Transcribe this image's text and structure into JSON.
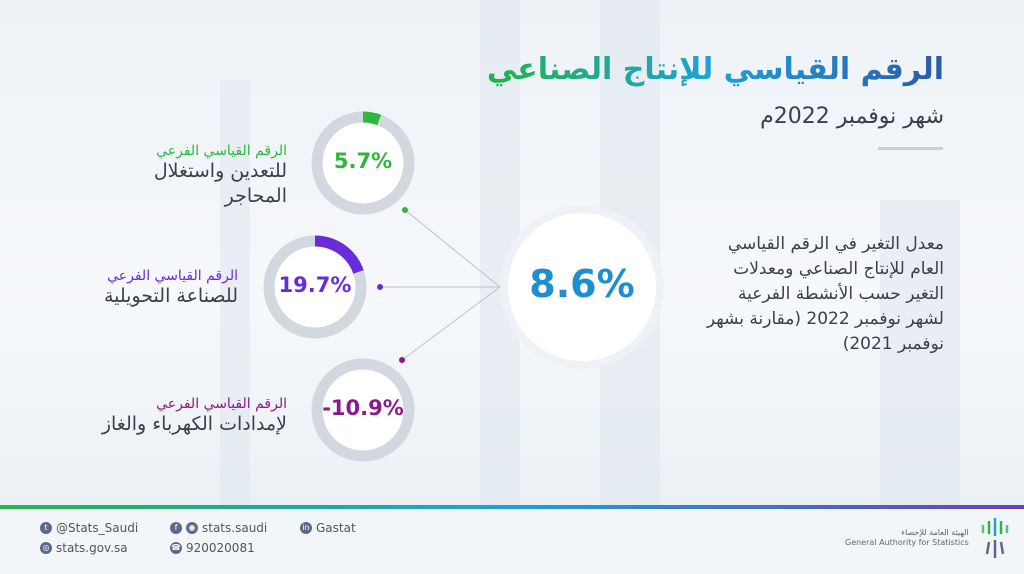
{
  "header": {
    "title": "الرقم القياسي للإنتاج الصناعي",
    "subtitle": "شهر نوفمبر 2022م"
  },
  "description": "معدل التغير في الرقم القياسي العام للإنتاج الصناعي ومعدلات التغير حسب الأنشطة الفرعية لشهر نوفمبر 2022 (مقارنة بشهر نوفمبر 2021)",
  "overall": {
    "value": "8.6%",
    "color": "#1d8fd0"
  },
  "indices": [
    {
      "label_top": "الرقم القياسي الفرعي",
      "label_main": "للتعدين واستغلال المحاجر",
      "value": "5.7%",
      "fraction": 0.057,
      "color": "#2db83d"
    },
    {
      "label_top": "الرقم القياسي الفرعي",
      "label_main": "للصناعة التحويلية",
      "value": "19.7%",
      "fraction": 0.197,
      "color": "#6a2bd9"
    },
    {
      "label_top": "الرقم القياسي الفرعي",
      "label_main": "لإمدادات الكهرباء والغاز",
      "value": "-10.9%",
      "fraction": 0,
      "color": "#8a1a8a"
    }
  ],
  "footer": {
    "twitter": "@Stats_Saudi",
    "web": "stats.gov.sa",
    "social": "stats.saudi",
    "phone": "920020081",
    "linkedin": "Gastat",
    "org_ar": "الهيئة العامة للإحصاء",
    "org_en": "General Authority for Statistics"
  }
}
